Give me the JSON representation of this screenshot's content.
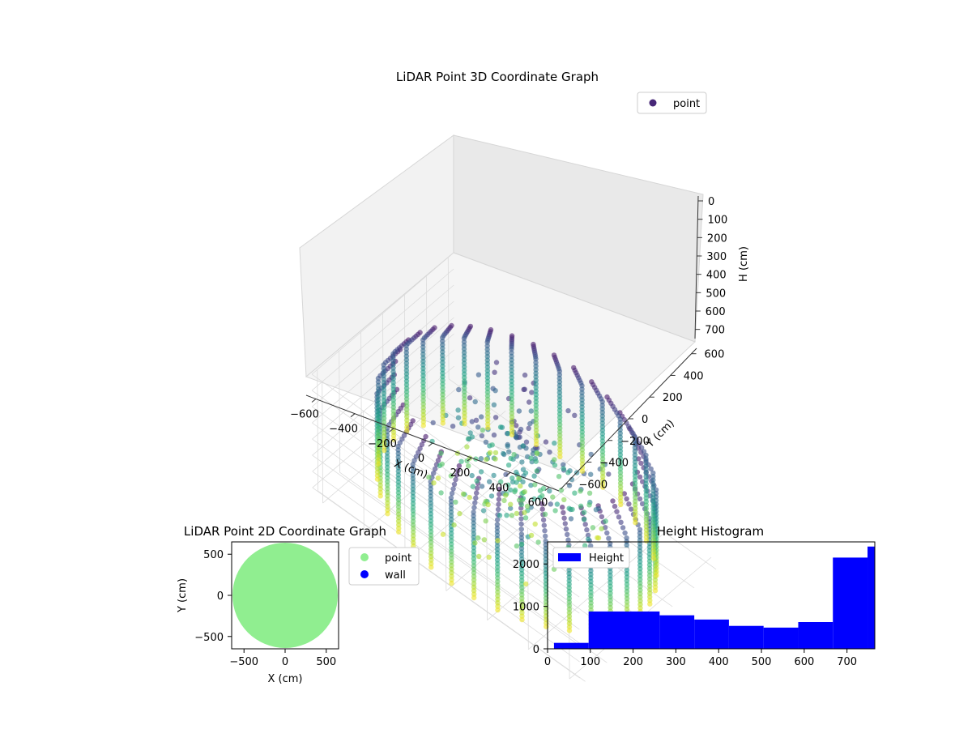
{
  "chart_data": [
    {
      "type": "scatter3d",
      "title": "LiDAR Point 3D Coordinate Graph",
      "xlabel": "X (cm)",
      "ylabel": "Y (cm)",
      "zlabel": "H (cm)",
      "xlim": [
        -650,
        650
      ],
      "ylim": [
        -650,
        650
      ],
      "zlim": [
        0,
        750
      ],
      "z_inverted": true,
      "xticks": [
        "−600",
        "−400",
        "−200",
        "0",
        "200",
        "400",
        "600"
      ],
      "yticks": [
        "−600",
        "−400",
        "−200",
        "0",
        "200",
        "400",
        "600"
      ],
      "zticks": [
        "0",
        "100",
        "200",
        "300",
        "400",
        "500",
        "600",
        "700"
      ],
      "legend": [
        {
          "label": "point",
          "color": "#482878"
        }
      ],
      "legend_position": "upper-right",
      "grid": true,
      "colormap": "viridis",
      "wall_radius": 600,
      "wall_columns": 36,
      "wall_height": [
        50,
        750
      ]
    },
    {
      "type": "scatter",
      "title": "LiDAR Point 2D Coordinate Graph",
      "xlabel": "X (cm)",
      "ylabel": "Y (cm)",
      "xlim": [
        -650,
        650
      ],
      "ylim": [
        -650,
        650
      ],
      "xticks": [
        "−500",
        "0",
        "500"
      ],
      "yticks": [
        "−500",
        "0",
        "500"
      ],
      "series": [
        {
          "name": "point",
          "color": "#90ee90",
          "shape": "disk",
          "radius": 640
        },
        {
          "name": "wall",
          "color": "#0000ff"
        }
      ],
      "legend_position": "outside-right"
    },
    {
      "type": "histogram",
      "title": "Height Histogram",
      "xlim": [
        0,
        765
      ],
      "ylim": [
        0,
        2520
      ],
      "xticks": [
        "0",
        "100",
        "200",
        "300",
        "400",
        "500",
        "600",
        "700"
      ],
      "yticks": [
        "0",
        "1000",
        "2000"
      ],
      "bins": [
        {
          "x0": 15,
          "x1": 96,
          "count": 140
        },
        {
          "x0": 96,
          "x1": 262,
          "count": 880
        },
        {
          "x0": 262,
          "x1": 343,
          "count": 790
        },
        {
          "x0": 343,
          "x1": 424,
          "count": 690
        },
        {
          "x0": 424,
          "x1": 505,
          "count": 540
        },
        {
          "x0": 505,
          "x1": 586,
          "count": 500
        },
        {
          "x0": 586,
          "x1": 667,
          "count": 630
        },
        {
          "x0": 667,
          "x1": 748,
          "count": 2150
        },
        {
          "x0": 748,
          "x1": 765,
          "count": 2410
        }
      ],
      "series": [
        {
          "name": "Height",
          "color": "#0000ff"
        }
      ],
      "legend_position": "upper-left"
    }
  ]
}
